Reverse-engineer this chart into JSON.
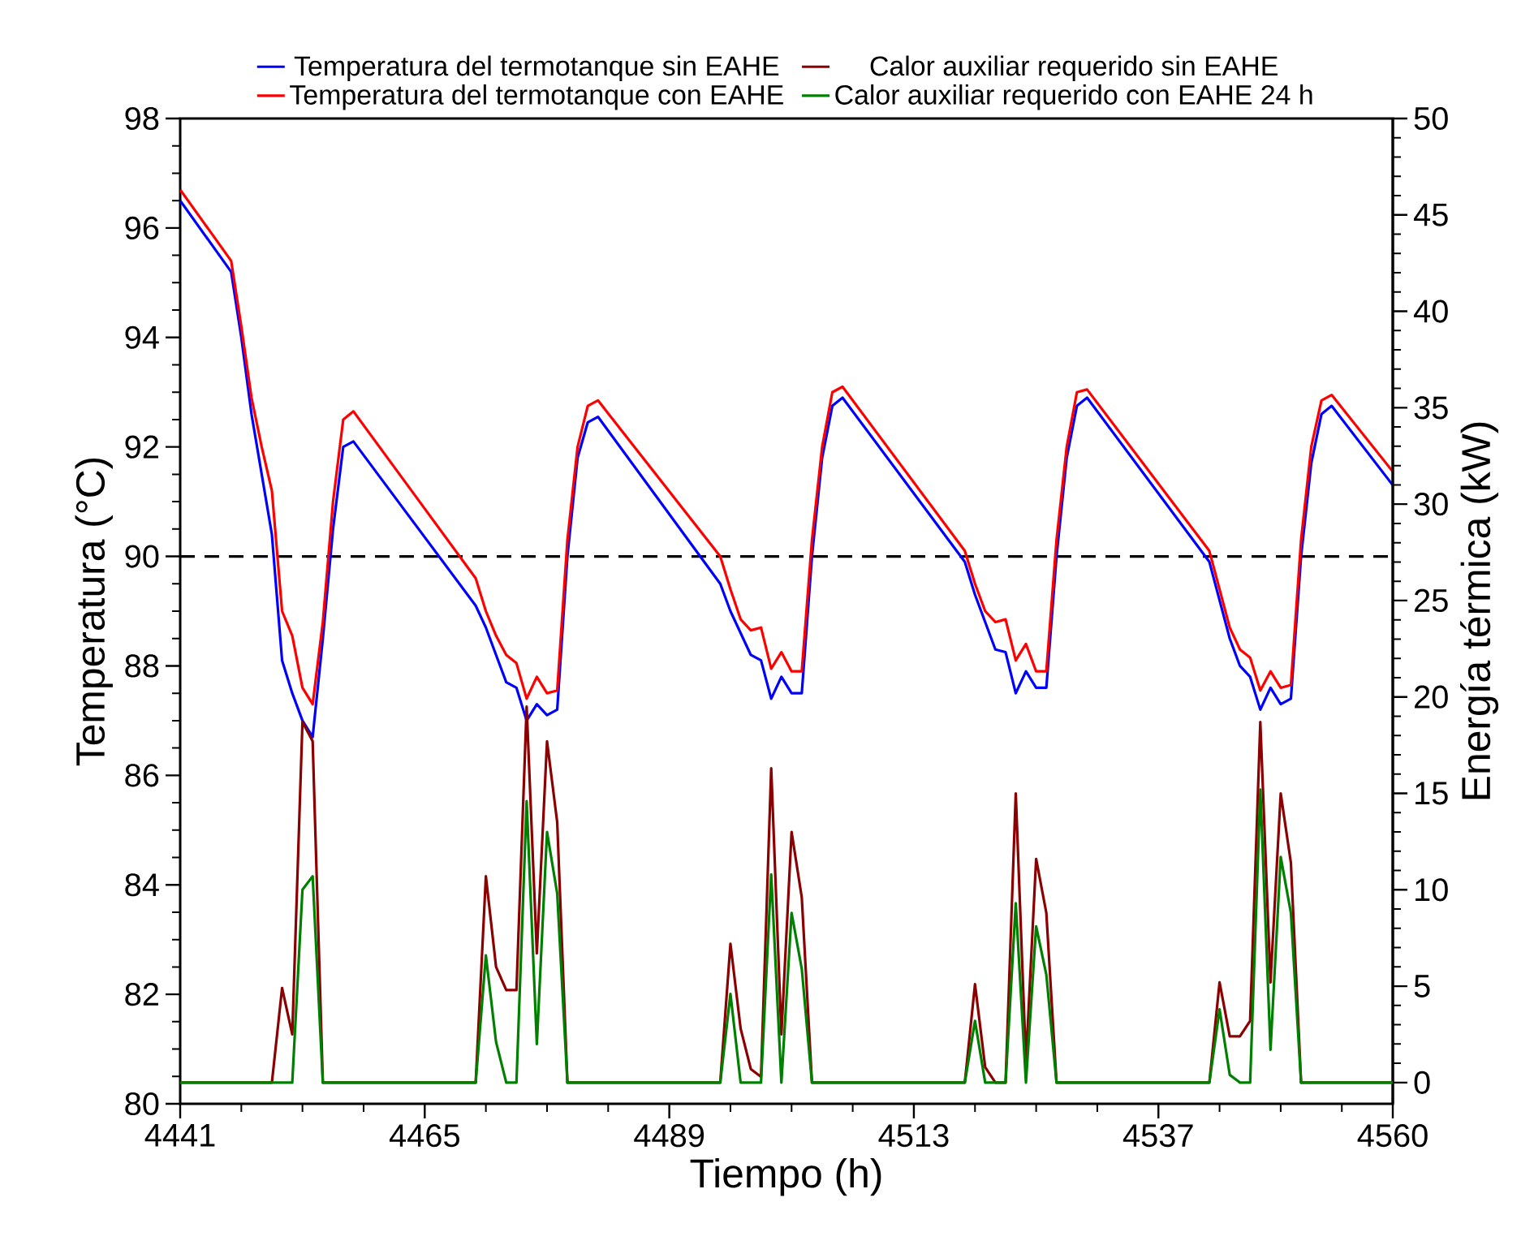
{
  "chart_data": {
    "type": "line",
    "xlabel": "Tiempo (h)",
    "ylabel": "Temperatura (°C)",
    "y2label": "Energía térmica (kW)",
    "xlim": [
      4441,
      4560
    ],
    "ylim": [
      80,
      98
    ],
    "y2lim": [
      -1.1,
      50
    ],
    "xticks": [
      4441,
      {
        "value": 4447,
        "label": null
      },
      {
        "value": 4453,
        "label": null
      },
      {
        "value": 4459,
        "label": null
      },
      4465,
      {
        "value": 4471,
        "label": null
      },
      {
        "value": 4477,
        "label": null
      },
      {
        "value": 4483,
        "label": null
      },
      4489,
      {
        "value": 4495,
        "label": null
      },
      {
        "value": 4501,
        "label": null
      },
      {
        "value": 4507,
        "label": null
      },
      4513,
      {
        "value": 4519,
        "label": null
      },
      {
        "value": 4525,
        "label": null
      },
      {
        "value": 4531,
        "label": null
      },
      4537,
      {
        "value": 4543,
        "label": null
      },
      {
        "value": 4549,
        "label": null
      },
      {
        "value": 4555,
        "label": null
      },
      4560
    ],
    "yticks": [
      80,
      {
        "value": 80.5,
        "label": null
      },
      {
        "value": 81,
        "label": null
      },
      {
        "value": 81.5,
        "label": null
      },
      82,
      {
        "value": 82.5,
        "label": null
      },
      {
        "value": 83,
        "label": null
      },
      {
        "value": 83.5,
        "label": null
      },
      84,
      {
        "value": 84.5,
        "label": null
      },
      {
        "value": 85,
        "label": null
      },
      {
        "value": 85.5,
        "label": null
      },
      86,
      {
        "value": 86.5,
        "label": null
      },
      {
        "value": 87,
        "label": null
      },
      {
        "value": 87.5,
        "label": null
      },
      88,
      {
        "value": 88.5,
        "label": null
      },
      {
        "value": 89,
        "label": null
      },
      {
        "value": 89.5,
        "label": null
      },
      90,
      {
        "value": 90.5,
        "label": null
      },
      {
        "value": 91,
        "label": null
      },
      {
        "value": 91.5,
        "label": null
      },
      92,
      {
        "value": 92.5,
        "label": null
      },
      {
        "value": 93,
        "label": null
      },
      {
        "value": 93.5,
        "label": null
      },
      94,
      {
        "value": 94.5,
        "label": null
      },
      {
        "value": 95,
        "label": null
      },
      {
        "value": 95.5,
        "label": null
      },
      96,
      {
        "value": 96.5,
        "label": null
      },
      {
        "value": 97,
        "label": null
      },
      {
        "value": 97.5,
        "label": null
      },
      98
    ],
    "y2ticks": [
      0,
      {
        "value": 1,
        "label": null
      },
      {
        "value": 2,
        "label": null
      },
      {
        "value": 3,
        "label": null
      },
      {
        "value": 4,
        "label": null
      },
      5,
      {
        "value": 6,
        "label": null
      },
      {
        "value": 7,
        "label": null
      },
      {
        "value": 8,
        "label": null
      },
      {
        "value": 9,
        "label": null
      },
      10,
      {
        "value": 11,
        "label": null
      },
      {
        "value": 12,
        "label": null
      },
      {
        "value": 13,
        "label": null
      },
      {
        "value": 14,
        "label": null
      },
      15,
      {
        "value": 16,
        "label": null
      },
      {
        "value": 17,
        "label": null
      },
      {
        "value": 18,
        "label": null
      },
      {
        "value": 19,
        "label": null
      },
      20,
      {
        "value": 21,
        "label": null
      },
      {
        "value": 22,
        "label": null
      },
      {
        "value": 23,
        "label": null
      },
      {
        "value": 24,
        "label": null
      },
      25,
      {
        "value": 26,
        "label": null
      },
      {
        "value": 27,
        "label": null
      },
      {
        "value": 28,
        "label": null
      },
      {
        "value": 29,
        "label": null
      },
      30,
      {
        "value": 31,
        "label": null
      },
      {
        "value": 32,
        "label": null
      },
      {
        "value": 33,
        "label": null
      },
      {
        "value": 34,
        "label": null
      },
      35,
      {
        "value": 36,
        "label": null
      },
      {
        "value": 37,
        "label": null
      },
      {
        "value": 38,
        "label": null
      },
      {
        "value": 39,
        "label": null
      },
      40,
      {
        "value": 41,
        "label": null
      },
      {
        "value": 42,
        "label": null
      },
      {
        "value": 43,
        "label": null
      },
      {
        "value": 44,
        "label": null
      },
      45,
      {
        "value": 46,
        "label": null
      },
      {
        "value": 47,
        "label": null
      },
      {
        "value": 48,
        "label": null
      },
      {
        "value": 49,
        "label": null
      },
      50
    ],
    "legend": "top",
    "line_style": "solid",
    "ref_lines": [
      {
        "axis": "y",
        "value": 90,
        "color": "#000000",
        "line_style": "dashed"
      }
    ],
    "series": [
      {
        "name": "Temperatura del termotanque sin EAHE",
        "color": "#0000ff",
        "x": [
          4441,
          4446,
          4447,
          4448,
          4449,
          4450,
          4451,
          4452,
          4453,
          4454,
          4455,
          4456,
          4457,
          4458,
          4470,
          4471,
          4472,
          4473,
          4474,
          4475,
          4476,
          4477,
          4478,
          4479,
          4480,
          4481,
          4482,
          4494,
          4495,
          4496,
          4497,
          4498,
          4499,
          4500,
          4501,
          4502,
          4503,
          4504,
          4505,
          4506,
          4518,
          4519,
          4520,
          4521,
          4522,
          4523,
          4524,
          4525,
          4526,
          4527,
          4528,
          4529,
          4530,
          4542,
          4543,
          4544,
          4545,
          4546,
          4547,
          4548,
          4549,
          4550,
          4551,
          4552,
          4553,
          4554,
          4560
        ],
        "values": [
          96.5,
          95.2,
          94.0,
          92.6,
          91.5,
          90.4,
          88.1,
          87.5,
          87.0,
          86.7,
          88.5,
          90.5,
          92.0,
          92.1,
          89.1,
          88.7,
          88.2,
          87.7,
          87.6,
          87.0,
          87.3,
          87.1,
          87.2,
          90.0,
          91.8,
          92.45,
          92.55,
          89.5,
          89.0,
          88.6,
          88.2,
          88.1,
          87.4,
          87.8,
          87.5,
          87.5,
          90.0,
          91.8,
          92.75,
          92.9,
          89.9,
          89.3,
          88.8,
          88.3,
          88.25,
          87.5,
          87.9,
          87.6,
          87.6,
          90.0,
          91.8,
          92.75,
          92.9,
          89.9,
          89.2,
          88.5,
          88.0,
          87.8,
          87.2,
          87.6,
          87.3,
          87.4,
          90.0,
          91.7,
          92.6,
          92.75,
          91.3
        ]
      },
      {
        "name": "Calor auxiliar requerido sin EAHE",
        "color": "#8b0000",
        "axis": "y2",
        "x": [
          4441,
          4450,
          4451,
          4452,
          4453,
          4454,
          4455,
          4470,
          4471,
          4472,
          4473,
          4474,
          4475,
          4476,
          4477,
          4478,
          4479,
          4494,
          4495,
          4496,
          4497,
          4498,
          4499,
          4500,
          4501,
          4502,
          4503,
          4518,
          4519,
          4520,
          4521,
          4522,
          4523,
          4524,
          4525,
          4526,
          4527,
          4542,
          4543,
          4544,
          4545,
          4546,
          4547,
          4548,
          4549,
          4550,
          4551,
          4560
        ],
        "values": [
          0,
          0,
          4.9,
          2.5,
          18.7,
          17.7,
          0,
          0,
          10.7,
          6.0,
          4.8,
          4.8,
          19.5,
          6.7,
          17.7,
          13.5,
          0,
          0,
          7.2,
          2.8,
          0.7,
          0.3,
          16.3,
          2.5,
          13.0,
          9.6,
          0,
          0,
          5.1,
          0.8,
          0,
          0,
          15.0,
          1.1,
          11.6,
          8.8,
          0,
          0,
          5.2,
          2.4,
          2.4,
          3.2,
          18.7,
          5.2,
          15.0,
          11.4,
          0,
          0
        ]
      },
      {
        "name": "Temperatura del termotanque con EAHE",
        "color": "#ff0000",
        "x": [
          4441,
          4446,
          4447,
          4448,
          4449,
          4450,
          4451,
          4452,
          4453,
          4454,
          4455,
          4456,
          4457,
          4458,
          4470,
          4471,
          4472,
          4473,
          4474,
          4475,
          4476,
          4477,
          4478,
          4479,
          4480,
          4481,
          4482,
          4494,
          4495,
          4496,
          4497,
          4498,
          4499,
          4500,
          4501,
          4502,
          4503,
          4504,
          4505,
          4506,
          4518,
          4519,
          4520,
          4521,
          4522,
          4523,
          4524,
          4525,
          4526,
          4527,
          4528,
          4529,
          4530,
          4542,
          4543,
          4544,
          4545,
          4546,
          4547,
          4548,
          4549,
          4550,
          4551,
          4552,
          4553,
          4554,
          4560
        ],
        "values": [
          96.7,
          95.4,
          94.2,
          92.9,
          92.0,
          91.2,
          89.0,
          88.55,
          87.6,
          87.3,
          88.8,
          91.0,
          92.5,
          92.65,
          89.6,
          89.0,
          88.55,
          88.2,
          88.05,
          87.4,
          87.8,
          87.5,
          87.55,
          90.3,
          92.0,
          92.75,
          92.85,
          90.0,
          89.4,
          88.85,
          88.65,
          88.7,
          87.95,
          88.25,
          87.9,
          87.9,
          90.3,
          92.0,
          93.0,
          93.1,
          90.1,
          89.5,
          89.0,
          88.8,
          88.85,
          88.1,
          88.4,
          87.9,
          87.9,
          90.3,
          92.0,
          93.0,
          93.05,
          90.1,
          89.4,
          88.7,
          88.3,
          88.15,
          87.55,
          87.9,
          87.6,
          87.65,
          90.3,
          92.0,
          92.85,
          92.95,
          91.55
        ]
      },
      {
        "name": "Calor auxiliar requerido con EAHE 24 h",
        "color": "#008000",
        "axis": "y2",
        "x": [
          4441,
          4450,
          4451,
          4452,
          4453,
          4454,
          4455,
          4470,
          4471,
          4472,
          4473,
          4474,
          4475,
          4476,
          4477,
          4478,
          4479,
          4494,
          4495,
          4496,
          4497,
          4498,
          4499,
          4500,
          4501,
          4502,
          4503,
          4518,
          4519,
          4520,
          4521,
          4522,
          4523,
          4524,
          4525,
          4526,
          4527,
          4542,
          4543,
          4544,
          4545,
          4546,
          4547,
          4548,
          4549,
          4550,
          4551,
          4560
        ],
        "values": [
          0,
          0,
          0,
          0,
          10.0,
          10.7,
          0,
          0,
          6.6,
          2.1,
          0,
          0,
          14.6,
          2.0,
          13.0,
          9.8,
          0,
          0,
          4.6,
          0,
          0,
          0,
          10.8,
          0,
          8.8,
          5.9,
          0,
          0,
          3.2,
          0,
          0,
          0,
          9.3,
          0,
          8.1,
          5.6,
          0,
          0,
          3.8,
          0.4,
          0,
          0,
          15.2,
          1.7,
          11.7,
          8.8,
          0,
          0
        ]
      }
    ]
  }
}
